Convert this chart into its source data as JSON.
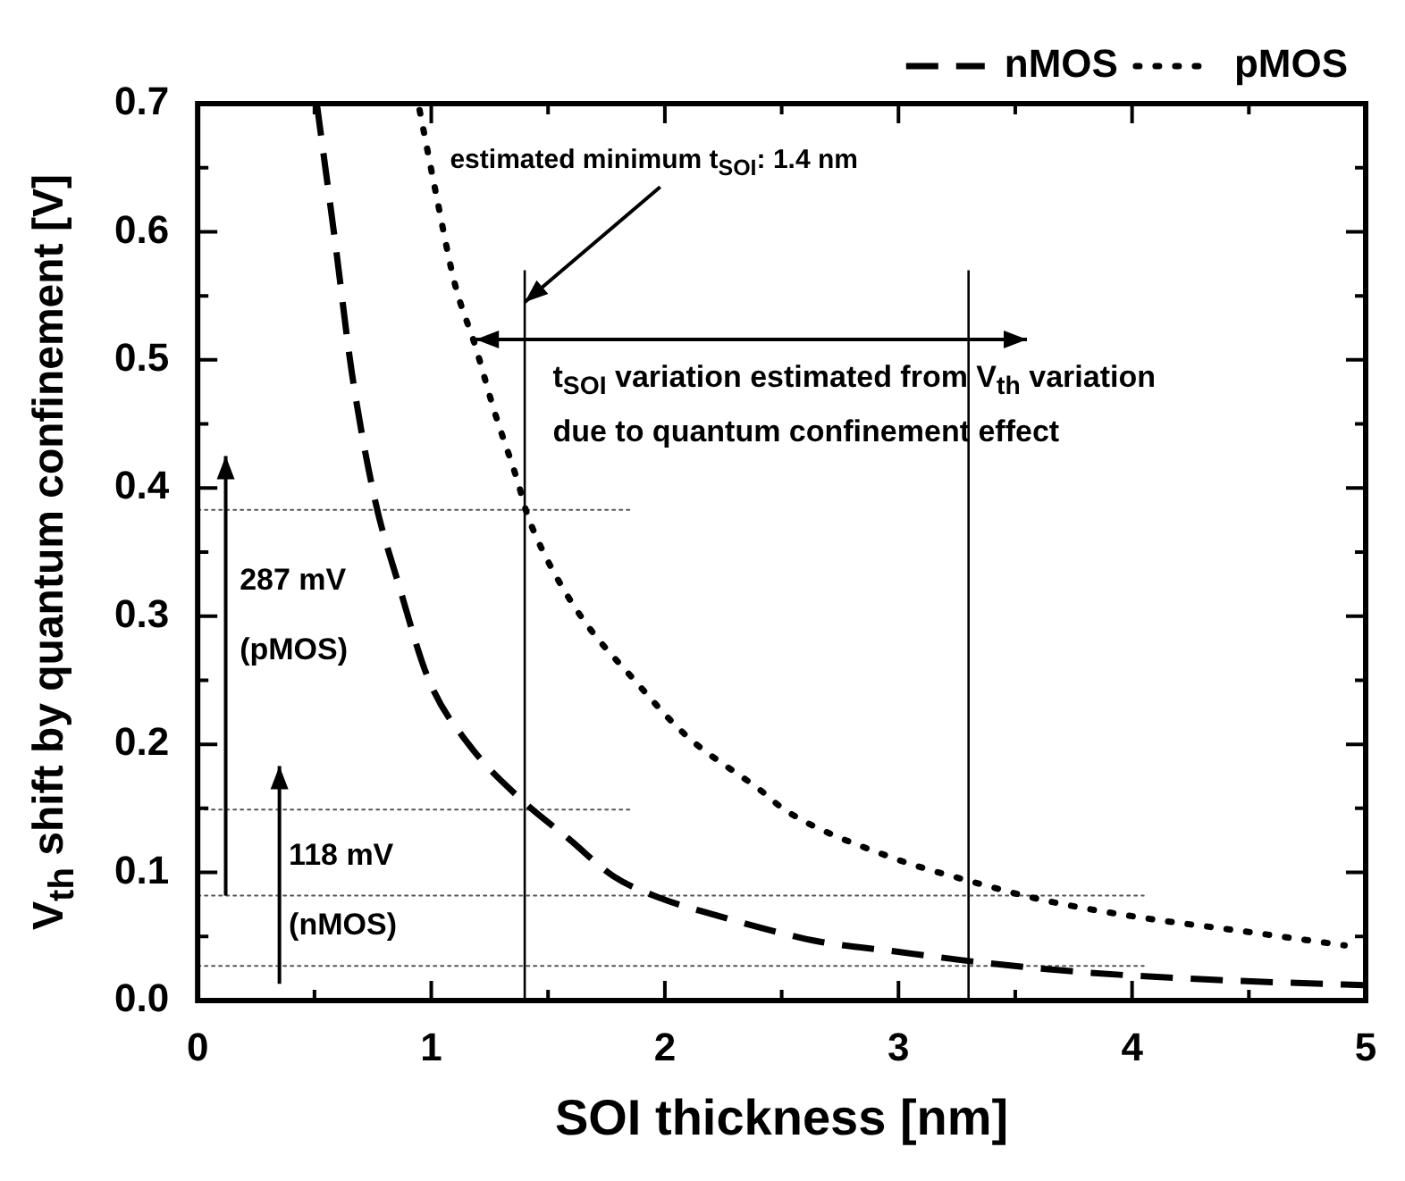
{
  "chart_data": {
    "type": "line",
    "xlabel": "SOI thickness [nm]",
    "ylabel": "V$_{th}$ shift by quantum confinement [V]",
    "xlim": [
      0,
      5
    ],
    "ylim": [
      0,
      0.7
    ],
    "xticks": [
      0,
      {
        "value": 0.5,
        "label": null
      },
      1,
      {
        "value": 1.5,
        "label": null
      },
      2,
      {
        "value": 2.5,
        "label": null
      },
      3,
      {
        "value": 3.5,
        "label": null
      },
      4,
      {
        "value": 4.5,
        "label": null
      },
      5
    ],
    "yticks": [
      {
        "value": 0,
        "label": "0.0"
      },
      {
        "value": 0.05,
        "label": null
      },
      0.1,
      {
        "value": 0.15,
        "label": null
      },
      0.2,
      {
        "value": 0.25,
        "label": null
      },
      0.3,
      {
        "value": 0.35,
        "label": null
      },
      0.4,
      {
        "value": 0.45,
        "label": null
      },
      0.5,
      {
        "value": 0.55,
        "label": null
      },
      0.6,
      {
        "value": 0.65,
        "label": null
      },
      0.7
    ],
    "legend": "top right",
    "series": [
      {
        "name": "nMOS",
        "color": "#000000",
        "line_style": "dashed",
        "x": [
          0.51,
          0.59,
          0.66,
          0.76,
          0.86,
          0.99,
          1.16,
          1.39,
          1.59,
          1.78,
          1.98,
          2.21,
          2.47,
          2.66,
          3.0,
          3.34,
          3.8,
          4.37,
          4.83,
          5.0
        ],
        "values": [
          0.7,
          0.59,
          0.49,
          0.39,
          0.325,
          0.25,
          0.2,
          0.156,
          0.126,
          0.097,
          0.08,
          0.067,
          0.054,
          0.046,
          0.038,
          0.03,
          0.022,
          0.016,
          0.013,
          0.012
        ]
      },
      {
        "name": "pMOS",
        "color": "#000000",
        "line_style": "dotted",
        "x": [
          0.95,
          1.02,
          1.1,
          1.19,
          1.27,
          1.37,
          1.41,
          1.48,
          1.64,
          1.87,
          2.09,
          2.41,
          2.52,
          2.95,
          3.35,
          3.63,
          4.03,
          4.48,
          4.91
        ],
        "values": [
          0.695,
          0.63,
          0.56,
          0.51,
          0.46,
          0.405,
          0.38,
          0.35,
          0.3,
          0.25,
          0.207,
          0.164,
          0.148,
          0.113,
          0.091,
          0.078,
          0.065,
          0.054,
          0.043
        ]
      },
      {
        "color": "#555555",
        "line_style": "dotted",
        "x": [
          0,
          1.85
        ],
        "values": [
          0.383,
          0.383
        ]
      },
      {
        "color": "#555555",
        "line_style": "dotted",
        "x": [
          0,
          1.85
        ],
        "values": [
          0.149,
          0.149
        ]
      },
      {
        "color": "#555555",
        "line_style": "dotted",
        "x": [
          0,
          4.05
        ],
        "values": [
          0.082,
          0.082
        ]
      },
      {
        "color": "#555555",
        "line_style": "dotted",
        "x": [
          0,
          4.05
        ],
        "values": [
          0.027,
          0.027
        ]
      },
      {
        "color": "#000000",
        "line_style": "solid",
        "x": [
          1.4,
          1.4
        ],
        "values": [
          0,
          0.57
        ]
      },
      {
        "color": "#000000",
        "line_style": "solid",
        "x": [
          3.3,
          3.3
        ],
        "values": [
          0,
          0.57
        ]
      }
    ],
    "annotations": [
      {
        "text": "estimated minimum t$_{SOI}$: 1.4 nm",
        "x": 1.4,
        "y": 0.545
      },
      "287 mV",
      "(pMOS)",
      "118 mV",
      "(nMOS)",
      "t$_{SOI}$ variation estimated from V$_{th}$ variation",
      "due to quantum confinement effect"
    ]
  }
}
